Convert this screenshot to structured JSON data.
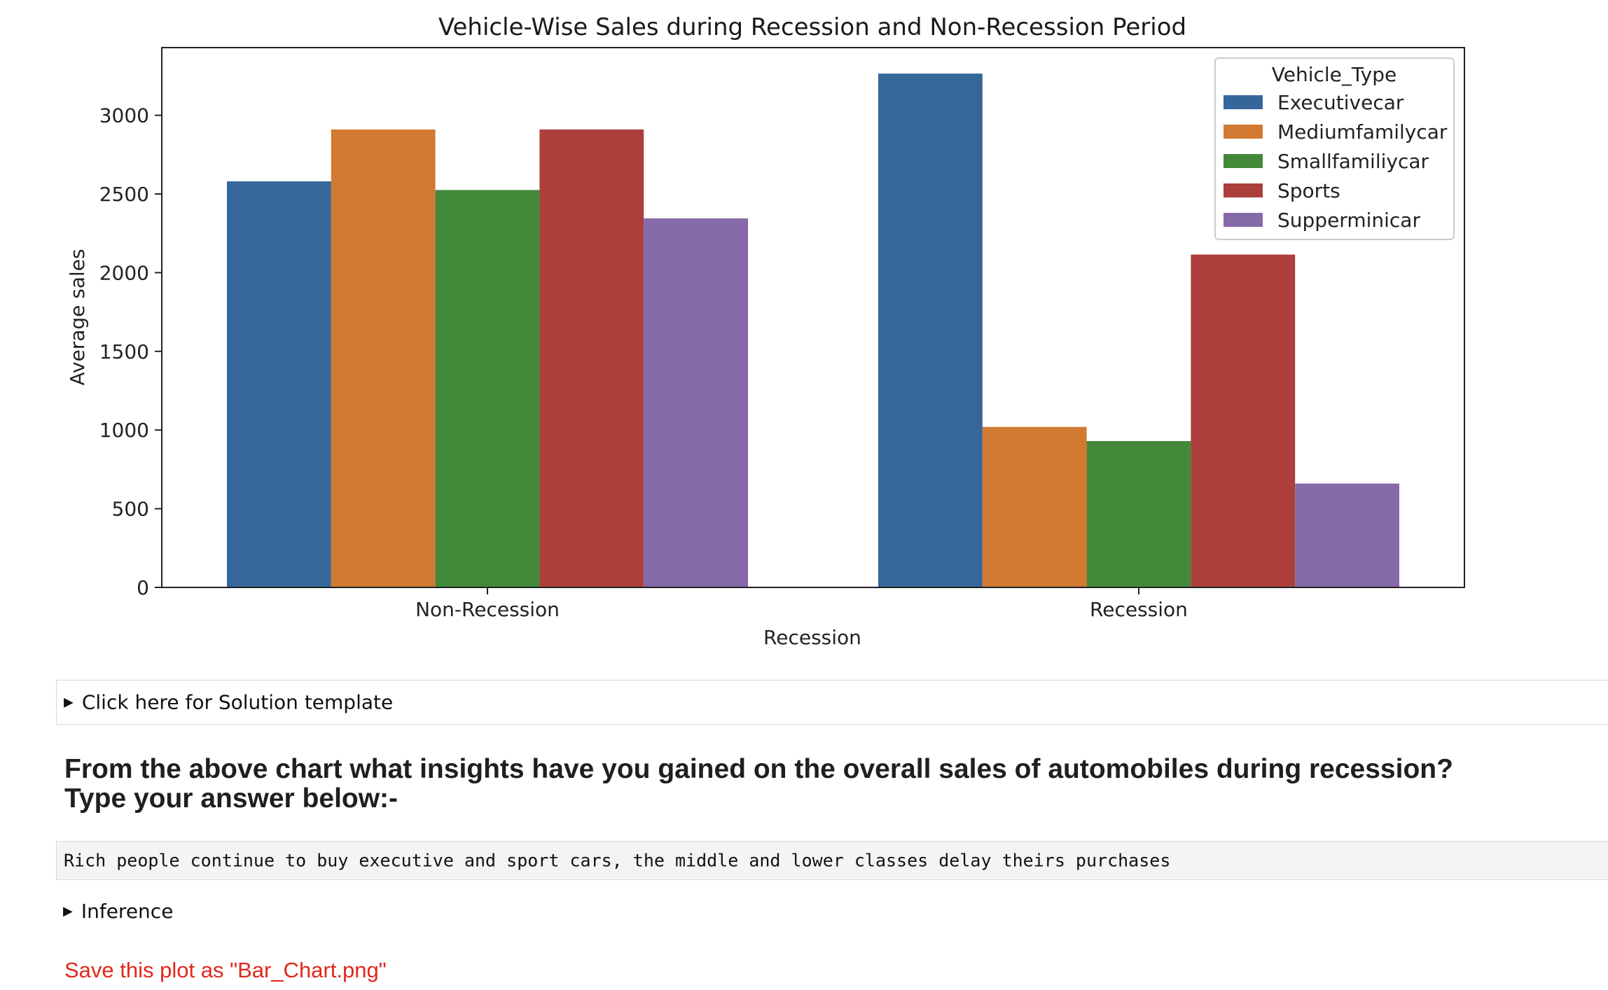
{
  "chart_data": {
    "type": "bar",
    "title": "Vehicle-Wise Sales during Recession and Non-Recession Period",
    "xlabel": "Recession",
    "ylabel": "Average sales",
    "categories": [
      "Non-Recession",
      "Recession"
    ],
    "legend_title": "Vehicle_Type",
    "legend_position": "top-right",
    "ylim": [
      0,
      3430
    ],
    "yticks": [
      0,
      500,
      1000,
      1500,
      2000,
      2500,
      3000
    ],
    "grid": false,
    "series": [
      {
        "name": "Executivecar",
        "color": "#36669a",
        "values": [
          2580,
          3265
        ]
      },
      {
        "name": "Mediumfamilycar",
        "color": "#d27a31",
        "values": [
          2910,
          1020
        ]
      },
      {
        "name": "Smallfamiliycar",
        "color": "#438839",
        "values": [
          2525,
          930
        ]
      },
      {
        "name": "Sports",
        "color": "#ac3f3b",
        "values": [
          2910,
          2115
        ]
      },
      {
        "name": "Supperminicar",
        "color": "#8569a8",
        "values": [
          2345,
          660
        ]
      }
    ]
  },
  "cells": {
    "solution_label": "Click here for Solution template",
    "question_line1": "From the above chart what insights have you gained on the overall sales of automobiles during recession?",
    "question_line2": "Type your answer below:-",
    "answer": "Rich people continue to buy executive and sport cars, the middle and lower classes delay theirs purchases",
    "inference_label": "Inference",
    "save_note": "Save this plot as \"Bar_Chart.png\"",
    "disclosure_icon": "▶"
  }
}
